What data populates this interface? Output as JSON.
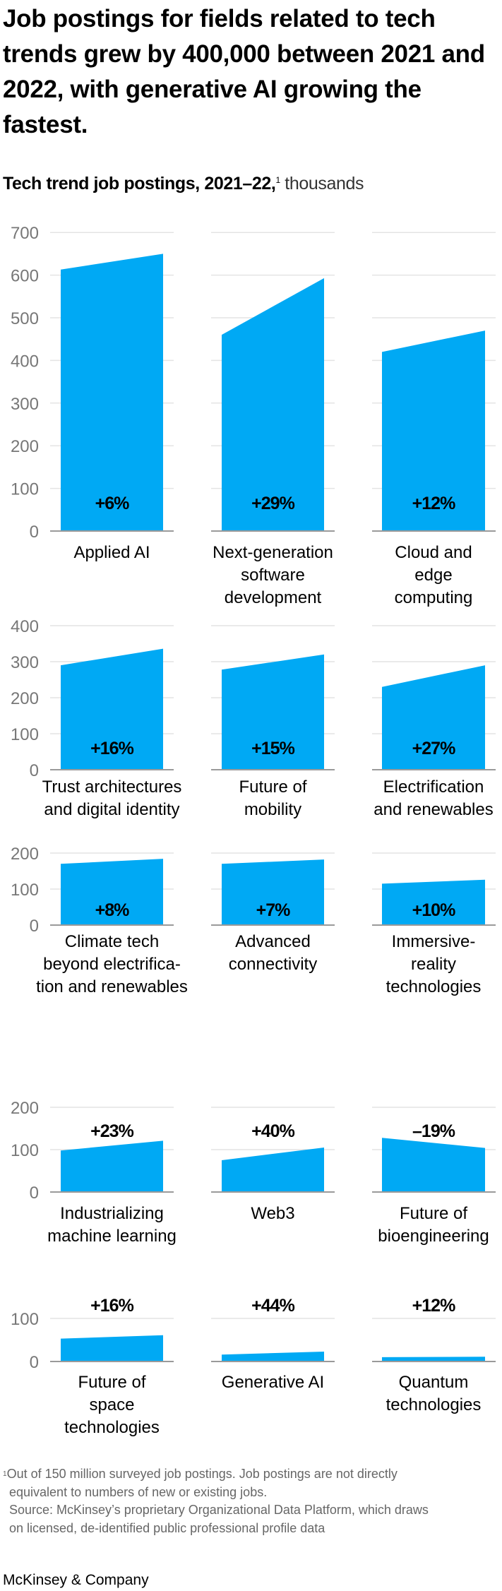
{
  "headline": "Job postings for fields related to tech trends grew by 400,000 between 2021 and 2022, with generative AI growing the fastest.",
  "subtitle": {
    "bold": "Tech trend job postings, 2021–22,",
    "footnote_mark": "1",
    "unit": "thousands"
  },
  "footnotes": {
    "note_mark": "1",
    "note_line1": "Out of 150 million surveyed job postings. Job postings are not directly",
    "note_line2": "equivalent to numbers of new or existing jobs.",
    "source_line1": "Source: McKinsey’s proprietary Organizational Data Platform, which draws",
    "source_line2": "on licensed, de-identified public professional profile data"
  },
  "brand": "McKinsey & Company",
  "colors": {
    "bar": "#00a9f4",
    "grid": "#e4e4e4",
    "baseline": "#9a9a9a",
    "tick_text": "#777777"
  },
  "chart_data": {
    "type": "area",
    "title": "Tech trend job postings, 2021–22",
    "unit": "thousands",
    "x": [
      "2021",
      "2022"
    ],
    "grid": true,
    "rows": [
      {
        "ylim": [
          0,
          700
        ],
        "y_ticks": [
          "0",
          "100",
          "200",
          "300",
          "400",
          "500",
          "600",
          "700"
        ],
        "panels": [
          {
            "label": [
              "Applied AI"
            ],
            "change": "+6%",
            "values": [
              613,
              650
            ]
          },
          {
            "label": [
              "Next-generation",
              "software",
              "development"
            ],
            "change": "+29%",
            "values": [
              460,
              593
            ]
          },
          {
            "label": [
              "Cloud and",
              "edge",
              "computing"
            ],
            "change": "+12%",
            "values": [
              420,
              470
            ]
          }
        ]
      },
      {
        "ylim": [
          0,
          400
        ],
        "y_ticks": [
          "0",
          "100",
          "200",
          "300",
          "400"
        ],
        "panels": [
          {
            "label": [
              "Trust architectures",
              "and digital identity"
            ],
            "change": "+16%",
            "values": [
              290,
              336
            ]
          },
          {
            "label": [
              "Future of",
              "mobility"
            ],
            "change": "+15%",
            "values": [
              278,
              320
            ]
          },
          {
            "label": [
              "Electrification",
              "and renewables"
            ],
            "change": "+27%",
            "values": [
              230,
              290
            ]
          }
        ]
      },
      {
        "ylim": [
          0,
          200
        ],
        "y_ticks": [
          "0",
          "100",
          "200"
        ],
        "panels": [
          {
            "label": [
              "Climate tech",
              "beyond electrifica-",
              "tion and renewables"
            ],
            "change": "+8%",
            "values": [
              170,
              184
            ]
          },
          {
            "label": [
              "Advanced",
              "connectivity"
            ],
            "change": "+7%",
            "values": [
              170,
              182
            ]
          },
          {
            "label": [
              "Immersive-",
              "reality",
              "technologies"
            ],
            "change": "+10%",
            "values": [
              115,
              126
            ]
          }
        ]
      },
      {
        "ylim": [
          0,
          200
        ],
        "y_ticks": [
          "0",
          "100",
          "200"
        ],
        "panels": [
          {
            "label": [
              "Industrializing",
              "machine learning"
            ],
            "change": "+23%",
            "values": [
              98,
              121
            ]
          },
          {
            "label": [
              "Web3"
            ],
            "change": "+40%",
            "values": [
              75,
              105
            ]
          },
          {
            "label": [
              "Future of",
              "bioengineering"
            ],
            "change": "–19%",
            "values": [
              128,
              104
            ]
          }
        ]
      },
      {
        "ylim": [
          0,
          100
        ],
        "y_ticks": [
          "0",
          "100"
        ],
        "panels": [
          {
            "label": [
              "Future of",
              "space",
              "technologies"
            ],
            "change": "+16%",
            "values": [
              53,
              61
            ]
          },
          {
            "label": [
              "Generative AI"
            ],
            "change": "+44%",
            "values": [
              16,
              23
            ]
          },
          {
            "label": [
              "Quantum",
              "technologies"
            ],
            "change": "+12%",
            "values": [
              10,
              11
            ]
          }
        ]
      }
    ]
  }
}
